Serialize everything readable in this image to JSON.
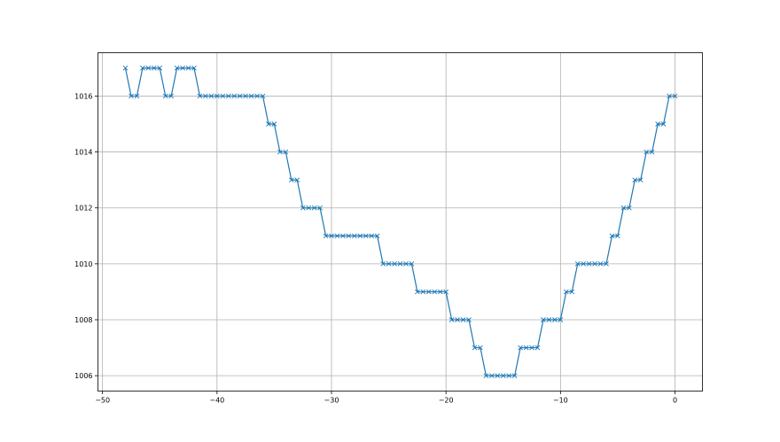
{
  "chart_data": {
    "type": "line",
    "marker": "x",
    "color": "#1f77b4",
    "grid": true,
    "xlim": [
      -50.4,
      2.4
    ],
    "ylim": [
      1005.45,
      1017.55
    ],
    "xticks": [
      -50,
      -40,
      -30,
      -20,
      -10,
      0
    ],
    "yticks": [
      1006,
      1008,
      1010,
      1012,
      1014,
      1016
    ],
    "xtick_labels": [
      "−50",
      "−40",
      "−30",
      "−20",
      "−10",
      "0"
    ],
    "ytick_labels": [
      "1006",
      "1008",
      "1010",
      "1012",
      "1014",
      "1016"
    ],
    "x": [
      -48,
      -47.5,
      -47,
      -46.5,
      -46,
      -45.5,
      -45,
      -44.5,
      -44,
      -43.5,
      -43,
      -42.5,
      -42,
      -41.5,
      -41,
      -40.5,
      -40,
      -39.5,
      -39,
      -38.5,
      -38,
      -37.5,
      -37,
      -36.5,
      -36,
      -35.5,
      -35,
      -34.5,
      -34,
      -33.5,
      -33,
      -32.5,
      -32,
      -31.5,
      -31,
      -30.5,
      -30,
      -29.5,
      -29,
      -28.5,
      -28,
      -27.5,
      -27,
      -26.5,
      -26,
      -25.5,
      -25,
      -24.5,
      -24,
      -23.5,
      -23,
      -22.5,
      -22,
      -21.5,
      -21,
      -20.5,
      -20,
      -19.5,
      -19,
      -18.5,
      -18,
      -17.5,
      -17,
      -16.5,
      -16,
      -15.5,
      -15,
      -14.5,
      -14,
      -13.5,
      -13,
      -12.5,
      -12,
      -11.5,
      -11,
      -10.5,
      -10,
      -9.5,
      -9,
      -8.5,
      -8,
      -7.5,
      -7,
      -6.5,
      -6,
      -5.5,
      -5,
      -4.5,
      -4,
      -3.5,
      -3,
      -2.5,
      -2,
      -1.5,
      -1,
      -0.5,
      0
    ],
    "y": [
      1017,
      1016,
      1016,
      1017,
      1017,
      1017,
      1017,
      1016,
      1016,
      1017,
      1017,
      1017,
      1017,
      1016,
      1016,
      1016,
      1016,
      1016,
      1016,
      1016,
      1016,
      1016,
      1016,
      1016,
      1016,
      1015,
      1015,
      1014,
      1014,
      1013,
      1013,
      1012,
      1012,
      1012,
      1012,
      1011,
      1011,
      1011,
      1011,
      1011,
      1011,
      1011,
      1011,
      1011,
      1011,
      1010,
      1010,
      1010,
      1010,
      1010,
      1010,
      1009,
      1009,
      1009,
      1009,
      1009,
      1009,
      1008,
      1008,
      1008,
      1008,
      1007,
      1007,
      1006,
      1006,
      1006,
      1006,
      1006,
      1006,
      1007,
      1007,
      1007,
      1007,
      1008,
      1008,
      1008,
      1008,
      1009,
      1009,
      1010,
      1010,
      1010,
      1010,
      1010,
      1010,
      1011,
      1011,
      1012,
      1012,
      1013,
      1013,
      1014,
      1014,
      1015,
      1015,
      1016,
      1016
    ]
  }
}
